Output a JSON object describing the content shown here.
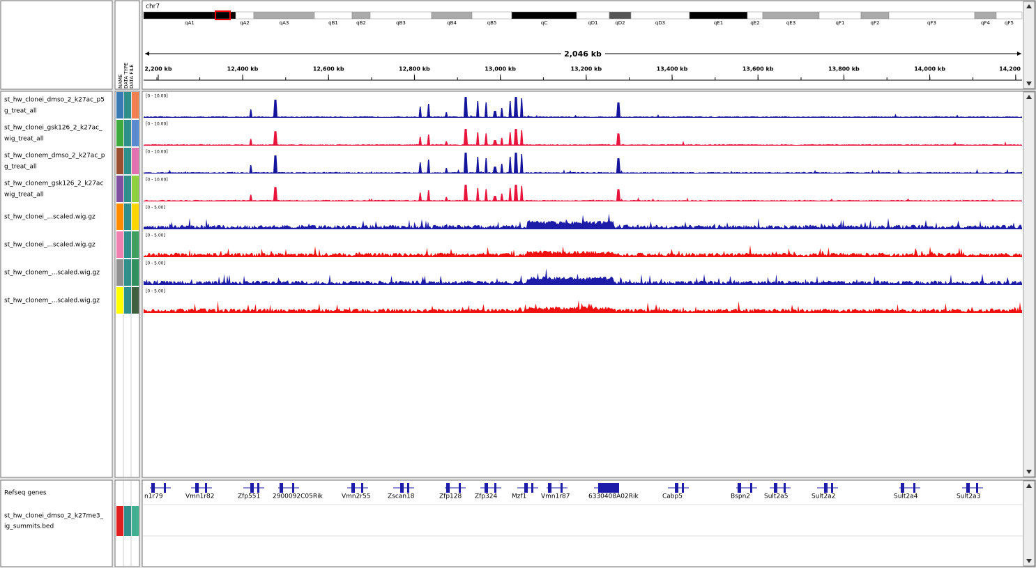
{
  "header": {
    "chromosome": "chr7",
    "cytobands": [
      "qA1",
      "qA2",
      "qA3",
      "qB1",
      "qB2",
      "qB3",
      "qB4",
      "qB5",
      "qC",
      "qD1",
      "qD2",
      "qD3",
      "qE1",
      "qE2",
      "qE3",
      "qF1",
      "qF2",
      "qF3",
      "qF4",
      "qF5"
    ],
    "span": "2,046 kb",
    "ruler_ticks": [
      "2,200 kb",
      "12,400 kb",
      "12,600 kb",
      "12,800 kb",
      "13,000 kb",
      "13,200 kb",
      "13,400 kb",
      "13,600 kb",
      "13,800 kb",
      "14,000 kb",
      "14,200"
    ]
  },
  "attribute_headers": [
    "NAME",
    "DATA TYPE",
    "DATA FILE"
  ],
  "tracks": [
    {
      "name_lines": [
        "st_hw_clonei_dmso_2_k27ac_p5",
        "g_treat_all"
      ],
      "range": "[0 - 10.00]",
      "color": "#14149c"
    },
    {
      "name_lines": [
        "st_hw_clonei_gsk126_2_k27ac_",
        "wig_treat_all"
      ],
      "range": "[0 - 10.00]",
      "color": "#e8143c"
    },
    {
      "name_lines": [
        "st_hw_clonem_dmso_2_k27ac_p",
        "g_treat_all"
      ],
      "range": "[0 - 10.00]",
      "color": "#14149c"
    },
    {
      "name_lines": [
        "st_hw_clonem_gsk126_2_k27ac",
        "wig_treat_all"
      ],
      "range": "[0 - 10.00]",
      "color": "#e8143c"
    },
    {
      "name_lines": [
        "st_hw_clonei_...scaled.wig.gz"
      ],
      "range": "[0 - 5.00]",
      "color": "#1c1ca8"
    },
    {
      "name_lines": [
        "st_hw_clonei_...scaled.wig.gz"
      ],
      "range": "[0 - 5.00]",
      "color": "#f01010"
    },
    {
      "name_lines": [
        "st_hw_clonem_...scaled.wig.gz"
      ],
      "range": "[0 - 5.00]",
      "color": "#1c1ca8"
    },
    {
      "name_lines": [
        "st_hw_clonem_...scaled.wig.gz"
      ],
      "range": "[0 - 5.00]",
      "color": "#f01010"
    }
  ],
  "refseq": {
    "name": "Refseq genes",
    "genes": [
      "n1r79",
      "Vmn1r82",
      "Zfp551",
      "2900092C05Rik",
      "Vmn2r55",
      "Zscan18",
      "Zfp128",
      "Zfp324",
      "Mzf1",
      "Vmn1r87",
      "6330408A02Rik",
      "Cabp5",
      "Bspn2",
      "Sult2a5",
      "Sult2a2",
      "Sult2a4",
      "Sult2a3"
    ]
  },
  "bed": {
    "name_lines": [
      "st_hw_clonei_dmso_2_k27me3_",
      "ig_summits.bed"
    ]
  }
}
